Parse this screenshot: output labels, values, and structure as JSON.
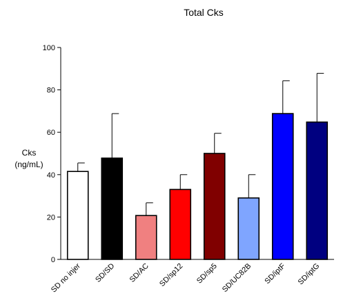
{
  "chart_data": {
    "type": "bar",
    "title": "Total Cks",
    "xlabel": "",
    "ylabel": [
      "Cks",
      "(ng/mL)"
    ],
    "ylim": [
      0,
      100
    ],
    "yticks": [
      0,
      20,
      40,
      60,
      80,
      100
    ],
    "grid": false,
    "legend": "none",
    "categories": [
      "SD no injer",
      "SD/SD",
      "SD/AC",
      "SD/sp12",
      "SD/sp5",
      "SD/UC82B",
      "SD/iptF",
      "SD/iptG"
    ],
    "values": [
      41.5,
      47.8,
      20.7,
      33.0,
      50.0,
      29.0,
      68.8,
      64.8
    ],
    "errors": [
      4.0,
      21.0,
      6.0,
      7.0,
      9.5,
      11.0,
      15.5,
      23.0
    ],
    "colors": [
      "#ffffff",
      "#000000",
      "#f08080",
      "#ff0000",
      "#800000",
      "#7fa5ff",
      "#0000ff",
      "#000080"
    ]
  }
}
